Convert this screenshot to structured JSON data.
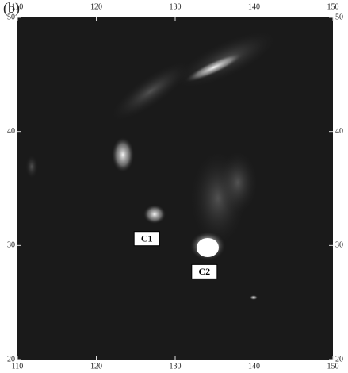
{
  "panel_label": "(b)",
  "map": {
    "xlim": [
      110,
      150
    ],
    "ylim": [
      20,
      50
    ],
    "xticks": [
      110,
      120,
      130,
      140,
      150
    ],
    "yticks": [
      20,
      30,
      40,
      50
    ],
    "annotations": [
      {
        "label": "C1",
        "x": 126.4,
        "y": 30.6
      },
      {
        "label": "C2",
        "x": 133.7,
        "y": 27.7
      }
    ]
  }
}
